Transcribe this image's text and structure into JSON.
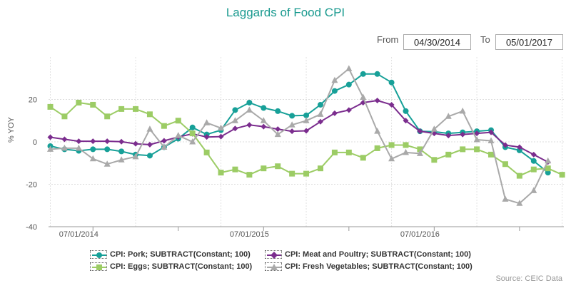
{
  "title": "Laggards of Food CPI",
  "date_range": {
    "from_label": "From",
    "from_value": "04/30/2014",
    "to_label": "To",
    "to_value": "05/01/2017"
  },
  "source": "Source: CEIC Data",
  "colors": {
    "pork": "#17a098",
    "meat": "#7b2d8e",
    "eggs": "#9ccc65",
    "veg": "#a9a9a9",
    "title": "#1a9a8f"
  },
  "chart_data": {
    "type": "line",
    "title": "Laggards of Food CPI",
    "ylabel": "% YOY",
    "xlabel": "",
    "ylim": [
      -40,
      40
    ],
    "yticks": [
      -40,
      -20,
      0,
      20
    ],
    "xtick_labels": [
      "07/01/2014",
      "07/01/2015",
      "07/01/2016"
    ],
    "xtick_positions": [
      2,
      14,
      26
    ],
    "x_count": 37,
    "grid": true,
    "legend_position": "bottom",
    "series": [
      {
        "key": "pork",
        "name": "CPI: Pork; SUBTRACT(Constant; 100)",
        "marker": "circle",
        "values": [
          -2,
          -3.5,
          -4.2,
          -3.5,
          -3.5,
          -4.5,
          -6,
          -6.5,
          -2.5,
          1.5,
          6.8,
          3.5,
          5.5,
          15,
          18.5,
          16,
          14.5,
          12.3,
          12.5,
          17.5,
          24,
          27,
          32,
          32,
          28,
          14.5,
          5,
          4.8,
          4,
          4.5,
          5,
          5.5,
          -2.5,
          -4,
          -9,
          -14.5
        ]
      },
      {
        "key": "meat",
        "name": "CPI: Meat and Poultry; SUBTRACT(Constant; 100)",
        "marker": "diamond",
        "values": [
          2.2,
          1.2,
          0.3,
          0.3,
          0.3,
          0.1,
          -0.9,
          -1.3,
          0.5,
          2.3,
          3.8,
          2.3,
          2.5,
          6.3,
          8,
          7.2,
          6,
          5,
          5.2,
          9.5,
          13.5,
          15,
          18.5,
          19.5,
          17.5,
          10,
          5,
          4,
          3,
          3.5,
          4,
          4.5,
          -1.5,
          -2.5,
          -6,
          -9.5
        ]
      },
      {
        "key": "eggs",
        "name": "CPI: Eggs; SUBTRACT(Constant; 100)",
        "marker": "square",
        "values": [
          16.5,
          12,
          18.5,
          17.5,
          12,
          15.5,
          15.5,
          13,
          7.5,
          10,
          4,
          -5,
          -14.5,
          -13,
          -15.5,
          -12.5,
          -11.5,
          -15,
          -15,
          -12.5,
          -5,
          -5,
          -7.5,
          -3,
          -1.5,
          -1.5,
          -3.5,
          -8.5,
          -6,
          -3.5,
          -3.5,
          -6,
          -10.5,
          -16,
          -13,
          -12.5,
          -15.5
        ]
      },
      {
        "key": "veg",
        "name": "CPI: Fresh Vegetables; SUBTRACT(Constant; 100)",
        "marker": "triangle",
        "values": [
          -3.5,
          -3,
          -3,
          -8,
          -10.5,
          -8.5,
          -7,
          6,
          -2.5,
          3,
          0,
          9,
          6.5,
          10,
          15,
          10,
          3.5,
          8,
          10,
          13,
          29,
          34.5,
          21,
          5,
          -8,
          -5,
          -5.5,
          6,
          12,
          14.5,
          1,
          0.5,
          -27,
          -29,
          -23,
          -9
        ]
      }
    ]
  }
}
